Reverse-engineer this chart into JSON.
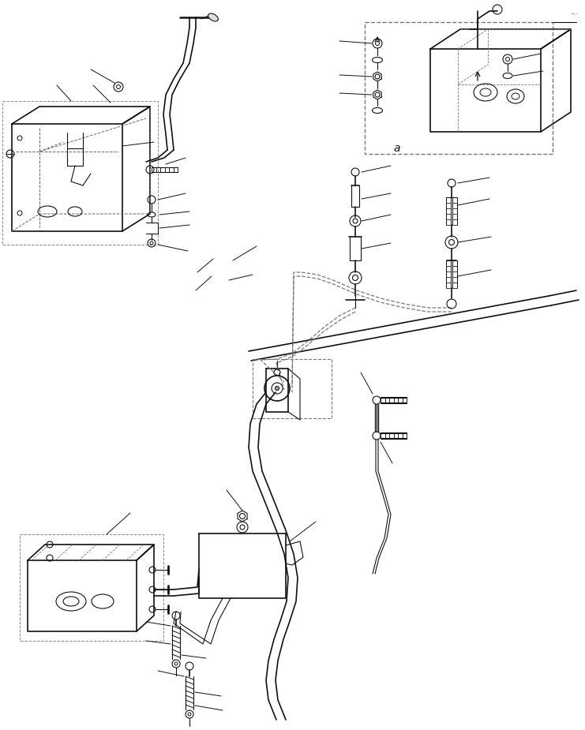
{
  "bg_color": "#ffffff",
  "line_color": "#111111",
  "fig_width": 7.41,
  "fig_height": 9.25,
  "dpi": 100
}
